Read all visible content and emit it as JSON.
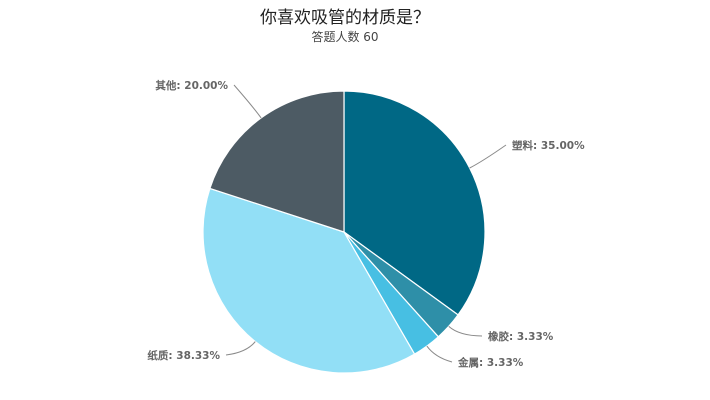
{
  "chart_data": {
    "type": "pie",
    "title": "你喜欢吸管的材质是？",
    "subtitle": "答题人数 60",
    "start": "top",
    "direction": "clockwise",
    "slices": [
      {
        "name": "塑料",
        "value": 35.0,
        "label": "塑料: 35.00%",
        "color": "#006885"
      },
      {
        "name": "橡胶",
        "value": 3.33,
        "label": "橡胶: 3.33%",
        "color": "#2e8fa8"
      },
      {
        "name": "金属",
        "value": 3.33,
        "label": "金属: 3.33%",
        "color": "#47bfe3"
      },
      {
        "name": "纸质",
        "value": 38.33,
        "label": "纸质: 38.33%",
        "color": "#92dff6"
      },
      {
        "name": "其他",
        "value": 20.0,
        "label": "其他: 20.00%",
        "color": "#4d5b64"
      }
    ]
  }
}
